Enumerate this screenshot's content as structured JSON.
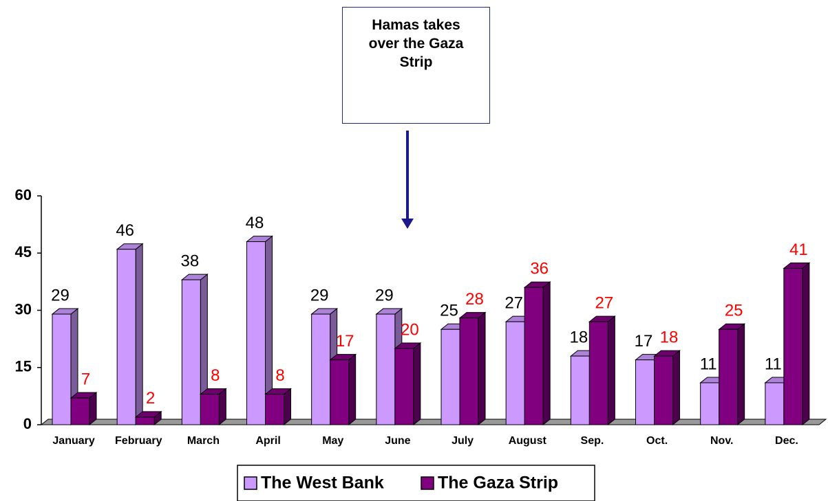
{
  "chart_data": {
    "type": "bar3d",
    "annotation": "Hamas takes over the Gaza Strip",
    "categories": [
      "January",
      "February",
      "March",
      "April",
      "May",
      "June",
      "July",
      "August",
      "Sep.",
      "Oct.",
      "Nov.",
      "Dec."
    ],
    "series": [
      {
        "name": "The West Bank",
        "color": "#cc99ff",
        "label_color": "#000000",
        "values": [
          29,
          46,
          38,
          48,
          29,
          29,
          25,
          27,
          18,
          17,
          11,
          11
        ]
      },
      {
        "name": "The Gaza Strip",
        "color": "#800080",
        "label_color": "#ff0000",
        "values": [
          7,
          2,
          8,
          8,
          17,
          20,
          28,
          36,
          27,
          18,
          25,
          41
        ]
      }
    ],
    "ylim": [
      0,
      60
    ],
    "yticks": [
      0,
      15,
      30,
      45,
      60
    ],
    "legend": "bottom"
  }
}
